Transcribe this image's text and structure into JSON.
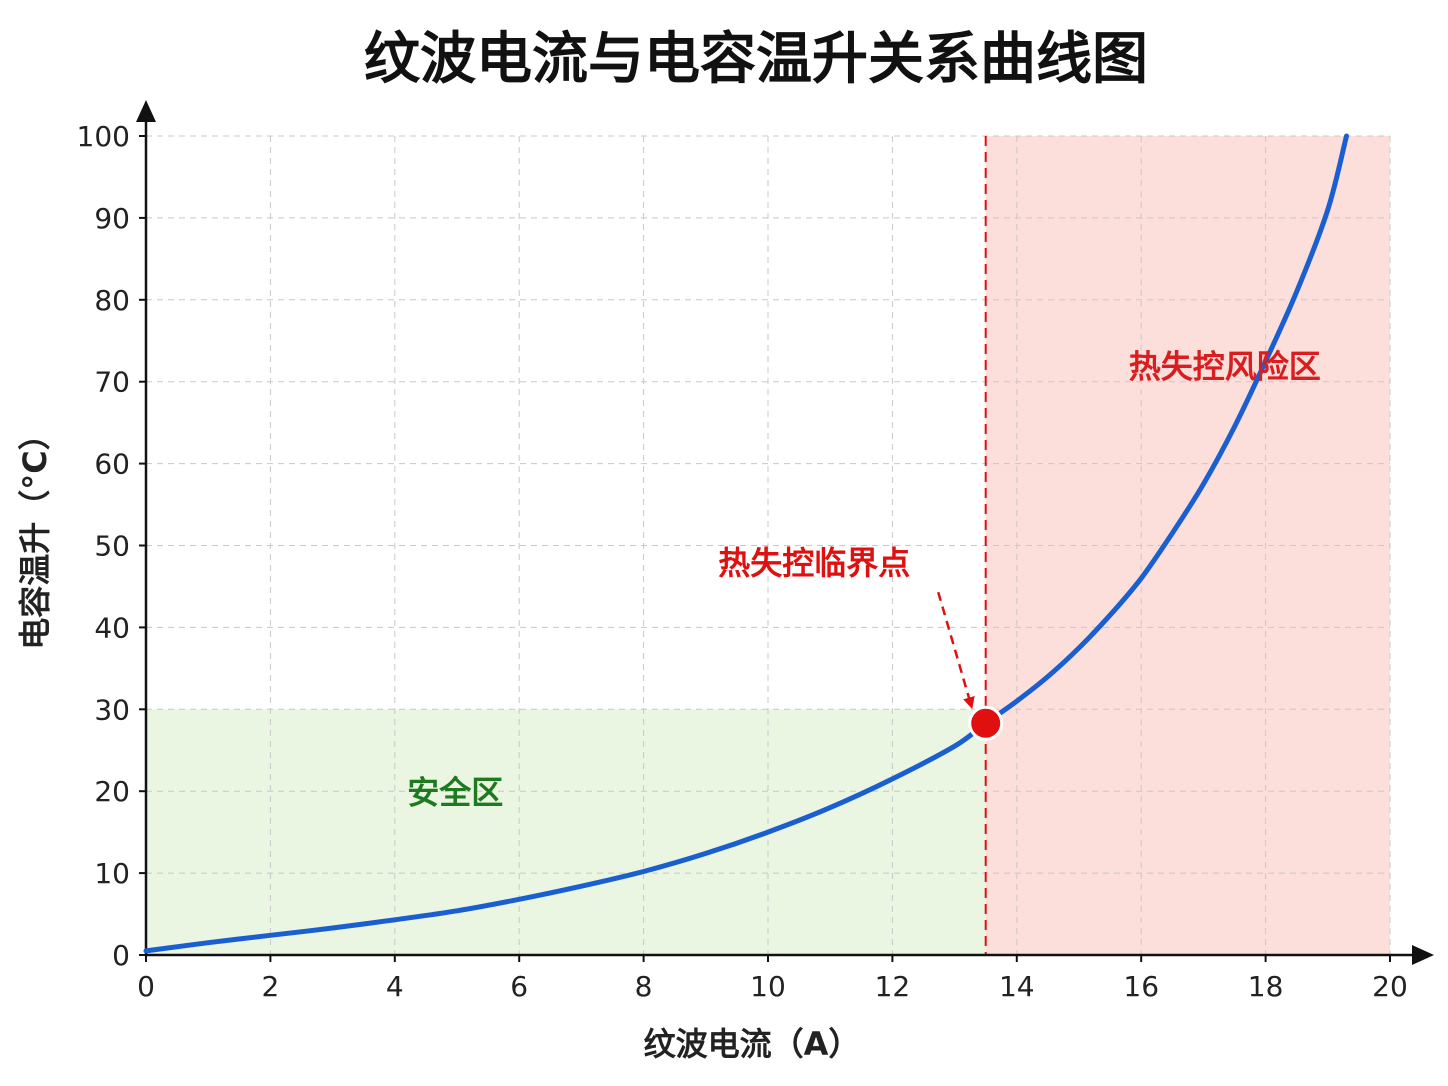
{
  "chart_data": {
    "type": "line",
    "title": "纹波电流与电容温升关系曲线图",
    "xlabel": "纹波电流（A）",
    "ylabel": "电容温升（°C）",
    "xlim": [
      0,
      20
    ],
    "ylim": [
      0,
      100
    ],
    "x_ticks": [
      "0",
      "2",
      "4",
      "6",
      "8",
      "10",
      "12",
      "14",
      "16",
      "18",
      "20"
    ],
    "y_ticks": [
      "0",
      "10",
      "20",
      "30",
      "40",
      "50",
      "60",
      "70",
      "80",
      "90",
      "100"
    ],
    "grid": true,
    "series": [
      {
        "color": "#1a5fd0",
        "x": [
          0,
          1,
          2,
          3,
          4,
          5,
          6,
          7,
          8,
          9,
          10,
          11,
          12,
          13,
          13.5,
          14,
          14.5,
          15,
          15.5,
          16,
          16.5,
          17,
          17.5,
          18,
          18.5,
          19,
          19.3
        ],
        "y": [
          0.5,
          1.5,
          2.4,
          3.3,
          4.3,
          5.4,
          6.8,
          8.4,
          10.2,
          12.4,
          15.0,
          18.0,
          21.5,
          25.5,
          28.3,
          31.0,
          34.0,
          37.5,
          41.5,
          46.0,
          51.5,
          57.5,
          64.5,
          72.5,
          81.0,
          91.0,
          100
        ]
      }
    ],
    "regions": [
      {
        "label": "安全区",
        "x_range": [
          0,
          13.5
        ],
        "y_range": [
          0,
          30
        ],
        "fill": "#eaf5e2",
        "text_color": "#1e7a1e",
        "label_at": [
          4.2,
          18.5
        ]
      },
      {
        "label": "热失控风险区",
        "x_range": [
          13.5,
          20
        ],
        "y_range": [
          0,
          100
        ],
        "fill": "#fcdedb",
        "text_color": "#d81e1e",
        "label_at": [
          15.8,
          70.5
        ]
      }
    ],
    "threshold_x": 13.5,
    "critical_point": {
      "label": "热失控临界点",
      "x": 13.5,
      "y": 28.3,
      "color": "#e01010",
      "label_at": [
        9.2,
        46.5
      ]
    }
  }
}
